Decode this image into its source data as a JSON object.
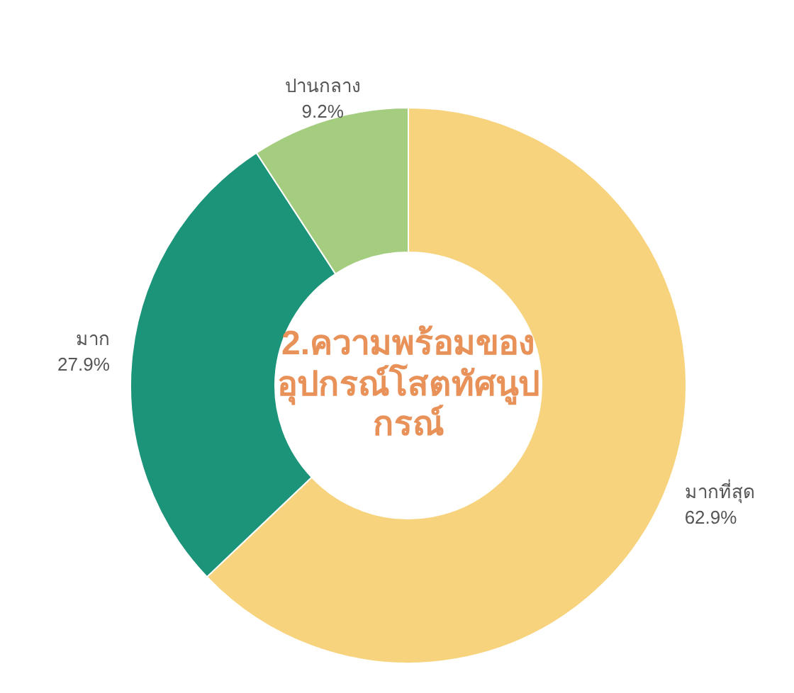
{
  "chart_data": {
    "type": "donut",
    "title": "2.ความพร้อมของอุปกรณ์โสตทัศนูปกรณ์",
    "categories": [
      "มากที่สุด",
      "มาก",
      "ปานกลาง"
    ],
    "values": [
      62.9,
      27.9,
      9.2
    ],
    "value_labels": [
      "62.9%",
      "27.9%",
      "9.2%"
    ],
    "colors": [
      "#f6d37c",
      "#1b9479",
      "#a5cd80"
    ],
    "legend": false
  }
}
